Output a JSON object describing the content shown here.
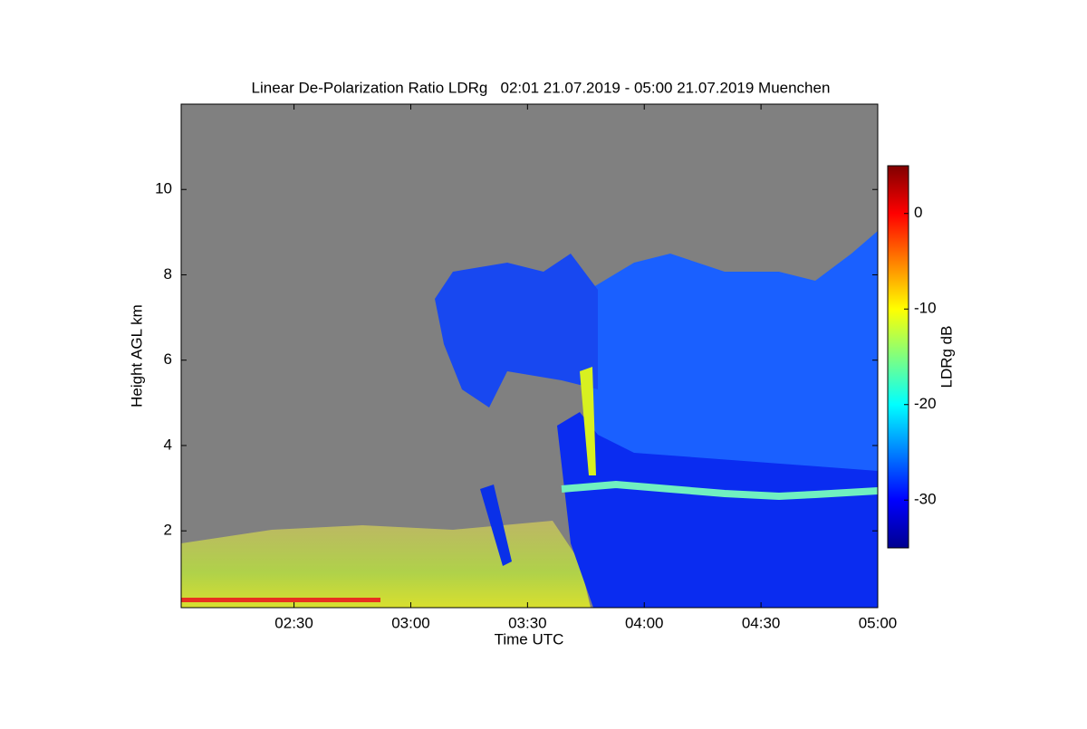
{
  "chart_data": {
    "type": "heatmap",
    "title": "Linear De-Polarization Ratio LDRg   02:01 21.07.2019 - 05:00 21.07.2019 Muenchen",
    "x_label": "Time UTC",
    "y_label": "Height AGL km",
    "xlim": [
      2.0167,
      5
    ],
    "xticks": [
      {
        "value": 2.5,
        "label": "02:30"
      },
      {
        "value": 3,
        "label": "03:00"
      },
      {
        "value": 3.5,
        "label": "03:30"
      },
      {
        "value": 4,
        "label": "04:00"
      },
      {
        "value": 4.5,
        "label": "04:30"
      },
      {
        "value": 5,
        "label": "05:00"
      }
    ],
    "ylim": [
      0.2,
      12
    ],
    "yticks": [
      2,
      4,
      6,
      8,
      10
    ],
    "colorbar": {
      "label": "LDRg dB",
      "lim": [
        -35,
        5
      ],
      "ticks": [
        0,
        -10,
        -20,
        -30
      ],
      "colormap": "jet"
    }
  }
}
